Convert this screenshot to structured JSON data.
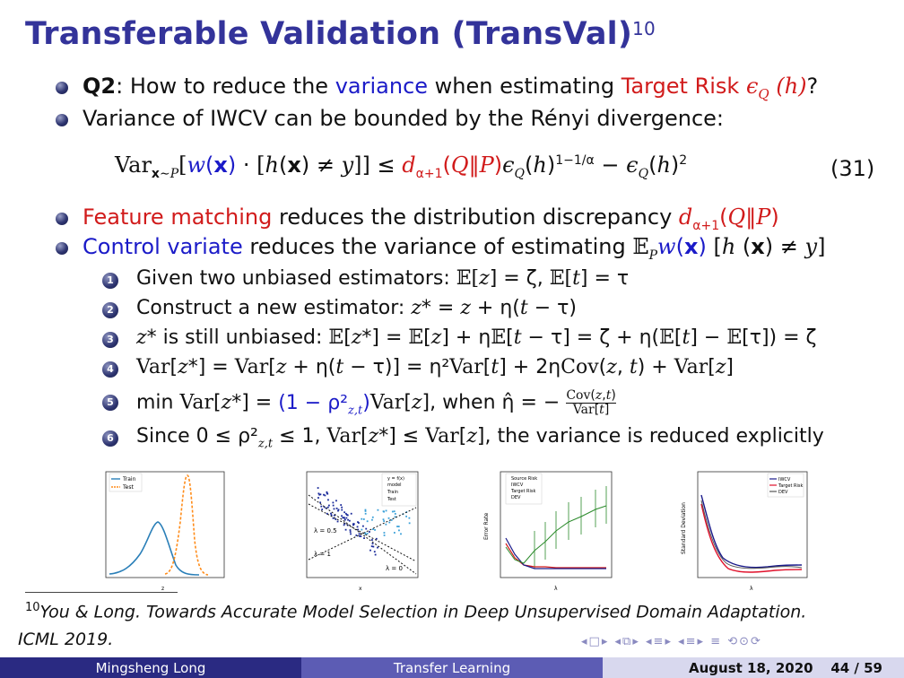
{
  "title": {
    "text": "Transferable Validation (TransVal)",
    "footnote_mark": "10"
  },
  "bullets": {
    "q2_label": "Q2",
    "q2_rest_1": ": How to reduce the ",
    "q2_variance": "variance",
    "q2_rest_2": " when estimating ",
    "q2_target": "Target Risk ",
    "q2_eps": "ϵ",
    "q2_Q": "Q",
    "q2_h": " (h)",
    "q2_end": "?",
    "variance_line": "Variance of IWCV can be bounded by the Rényi divergence:",
    "feature_matching": "Feature matching",
    "feature_rest": " reduces the distribution discrepancy ",
    "control_variate": "Control variate",
    "control_rest": " reduces the variance of estimating "
  },
  "equation": {
    "number": "(31)"
  },
  "steps": [
    {
      "n": "1",
      "text": "Given two unbiased estimators:"
    },
    {
      "n": "2",
      "text": "Construct a new estimator:"
    },
    {
      "n": "3",
      "text": " is still unbiased:"
    },
    {
      "n": "4",
      "text": ""
    },
    {
      "n": "5",
      "text": ", when"
    },
    {
      "n": "6",
      "text": "Since 0 ≤"
    }
  ],
  "step6_tail": ", the variance is reduced explicitly",
  "plots": {
    "p1_legend": [
      "Train",
      "Test"
    ],
    "p1_xlabel": "z",
    "p2_legend": [
      "y = f(x)",
      "model",
      "Train",
      "Test"
    ],
    "p2_xlabel": "x",
    "p2_annots": [
      "λ = 0.5",
      "λ = 1",
      "λ = 0"
    ],
    "p3_legend": [
      "Source Risk",
      "IWCV",
      "Target Risk",
      "DEV"
    ],
    "p3_ylabel": "Error Rate",
    "p3_xlabel": "λ",
    "p4_legend": [
      "IWCV",
      "Target Risk",
      "DEV"
    ],
    "p4_ylabel": "Standard Deviation",
    "p4_xlabel": "λ",
    "colors": {
      "train": "#2a7fb8",
      "test": "#ff8c1a",
      "iwcv": "#1a1a8a",
      "target": "#e0102a",
      "dev": "#2a8a2a"
    }
  },
  "footnote": {
    "mark": "10",
    "text": "You & Long. Towards Accurate Model Selection in Deep Unsupervised Domain Adaptation.",
    "venue": "ICML 2019."
  },
  "footer": {
    "author": "Mingsheng Long",
    "course": "Transfer Learning",
    "date": "August 18, 2020",
    "page": "44 / 59"
  },
  "theme": {
    "title_color": "#33339a",
    "footer_dark": "#2a2a82",
    "footer_mid": "#5c5cb4",
    "footer_light": "#d8d8ee"
  }
}
